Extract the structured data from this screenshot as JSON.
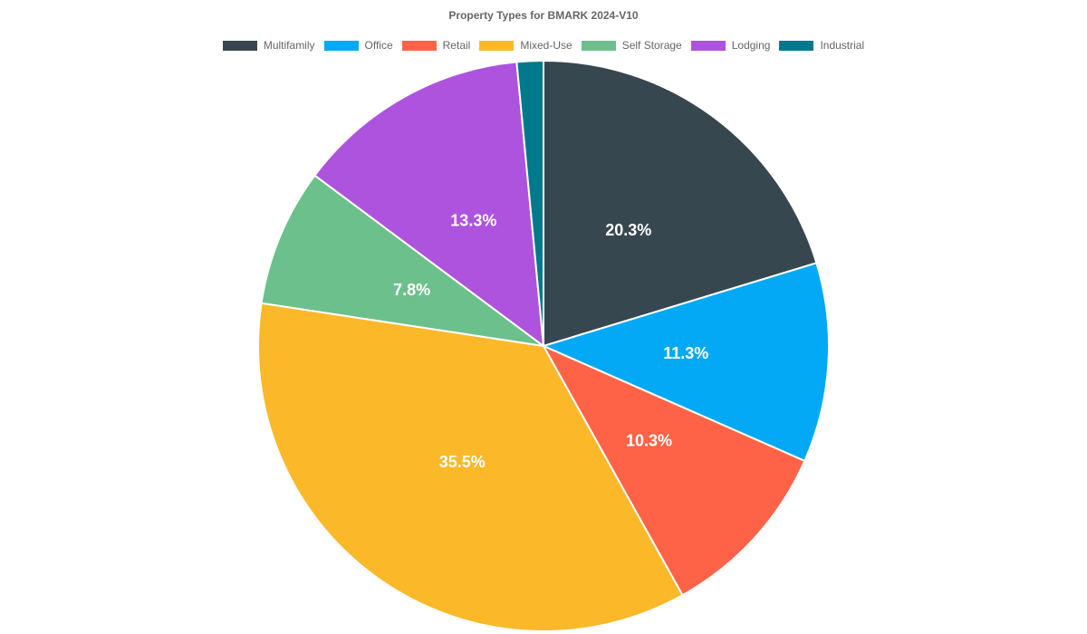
{
  "chart_data": {
    "type": "pie",
    "title": "Property Types for BMARK 2024-V10",
    "legend_position": "top",
    "categories": [
      "Multifamily",
      "Office",
      "Retail",
      "Mixed-Use",
      "Self Storage",
      "Lodging",
      "Industrial"
    ],
    "values": [
      20.3,
      11.3,
      10.3,
      35.5,
      7.8,
      13.3,
      1.5
    ],
    "labels": [
      "20.3%",
      "11.3%",
      "10.3%",
      "35.5%",
      "7.8%",
      "13.3%",
      ""
    ],
    "colors": [
      "#37474f",
      "#03a9f4",
      "#ff6347",
      "#fbb829",
      "#6cc08b",
      "#ae53de",
      "#00798c"
    ]
  }
}
